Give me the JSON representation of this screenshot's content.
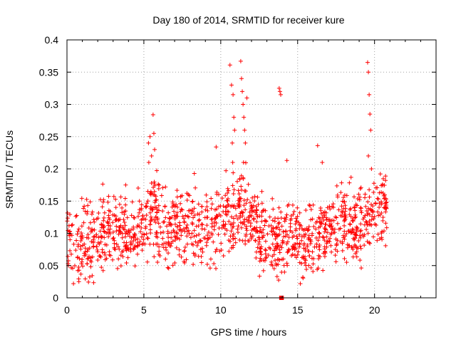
{
  "chart_data": {
    "type": "scatter",
    "title": "Day 180 of 2014, SRMTID for receiver kure",
    "xlabel": "GPS time / hours",
    "ylabel": "SRMTID / TECUs",
    "xlim": [
      0,
      24
    ],
    "ylim": [
      0,
      0.4
    ],
    "x_ticks": [
      0,
      5,
      10,
      15,
      20
    ],
    "x_tick_labels": [
      "0",
      "5",
      "10",
      "15",
      "20"
    ],
    "y_ticks": [
      0,
      0.05,
      0.1,
      0.15,
      0.2,
      0.25,
      0.3,
      0.35,
      0.4
    ],
    "y_tick_labels": [
      "0",
      "0.05",
      "0.1",
      "0.15",
      "0.2",
      "0.25",
      "0.3",
      "0.35",
      "0.4"
    ],
    "grid": true,
    "marker": "plus",
    "series_color": "#ff0000",
    "x_range_of_points": [
      0,
      20.8
    ],
    "baseline_marker": {
      "x_start": 13.8,
      "x_end": 14.1,
      "y": 0.0
    },
    "envelope": [
      {
        "x": 0.0,
        "y": 0.085
      },
      {
        "x": 1.0,
        "y": 0.08
      },
      {
        "x": 2.0,
        "y": 0.095
      },
      {
        "x": 3.0,
        "y": 0.11
      },
      {
        "x": 4.0,
        "y": 0.1
      },
      {
        "x": 5.0,
        "y": 0.11
      },
      {
        "x": 5.5,
        "y": 0.14
      },
      {
        "x": 6.5,
        "y": 0.1
      },
      {
        "x": 8.0,
        "y": 0.11
      },
      {
        "x": 9.5,
        "y": 0.11
      },
      {
        "x": 10.5,
        "y": 0.13
      },
      {
        "x": 11.5,
        "y": 0.14
      },
      {
        "x": 12.5,
        "y": 0.1
      },
      {
        "x": 13.5,
        "y": 0.09
      },
      {
        "x": 14.5,
        "y": 0.09
      },
      {
        "x": 15.5,
        "y": 0.08
      },
      {
        "x": 16.5,
        "y": 0.1
      },
      {
        "x": 17.5,
        "y": 0.11
      },
      {
        "x": 18.5,
        "y": 0.11
      },
      {
        "x": 19.5,
        "y": 0.12
      },
      {
        "x": 20.8,
        "y": 0.15
      }
    ],
    "bursts": [
      {
        "x": 5.3,
        "y": 0.24
      },
      {
        "x": 5.4,
        "y": 0.25
      },
      {
        "x": 5.5,
        "y": 0.22
      },
      {
        "x": 5.6,
        "y": 0.284
      },
      {
        "x": 5.65,
        "y": 0.255
      },
      {
        "x": 5.7,
        "y": 0.23
      },
      {
        "x": 9.7,
        "y": 0.234
      },
      {
        "x": 10.6,
        "y": 0.361
      },
      {
        "x": 10.7,
        "y": 0.33
      },
      {
        "x": 10.8,
        "y": 0.315
      },
      {
        "x": 10.85,
        "y": 0.28
      },
      {
        "x": 10.9,
        "y": 0.26
      },
      {
        "x": 10.75,
        "y": 0.24
      },
      {
        "x": 11.3,
        "y": 0.367
      },
      {
        "x": 11.35,
        "y": 0.34
      },
      {
        "x": 11.4,
        "y": 0.32
      },
      {
        "x": 11.45,
        "y": 0.3
      },
      {
        "x": 11.5,
        "y": 0.28
      },
      {
        "x": 11.55,
        "y": 0.26
      },
      {
        "x": 11.6,
        "y": 0.24
      },
      {
        "x": 11.7,
        "y": 0.31
      },
      {
        "x": 13.8,
        "y": 0.325
      },
      {
        "x": 13.85,
        "y": 0.32
      },
      {
        "x": 13.9,
        "y": 0.315
      },
      {
        "x": 14.3,
        "y": 0.213
      },
      {
        "x": 16.3,
        "y": 0.236
      },
      {
        "x": 16.6,
        "y": 0.21
      },
      {
        "x": 19.55,
        "y": 0.365
      },
      {
        "x": 19.6,
        "y": 0.35
      },
      {
        "x": 19.65,
        "y": 0.315
      },
      {
        "x": 19.7,
        "y": 0.285
      },
      {
        "x": 19.75,
        "y": 0.26
      },
      {
        "x": 19.6,
        "y": 0.22
      },
      {
        "x": 19.8,
        "y": 0.2
      }
    ]
  }
}
